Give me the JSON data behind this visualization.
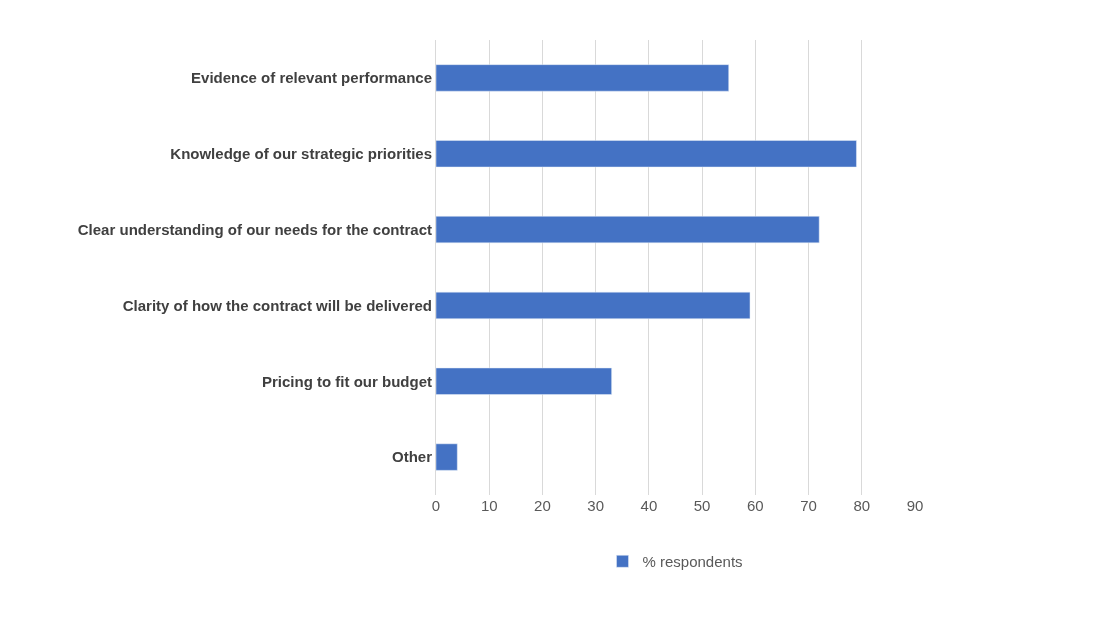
{
  "chart_data": {
    "type": "bar",
    "orientation": "horizontal",
    "categories": [
      "Evidence of relevant performance",
      "Knowledge of our strategic priorities",
      "Clear understanding of our needs for the contract",
      "Clarity of how the contract will be delivered",
      "Pricing to fit our budget",
      "Other"
    ],
    "series": [
      {
        "name": "% respondents",
        "color": "#4472c4",
        "values": [
          55,
          79,
          72,
          59,
          33,
          4
        ]
      }
    ],
    "xlim": [
      0,
      90
    ],
    "xticks": [
      0,
      10,
      20,
      30,
      40,
      50,
      60,
      70,
      80,
      90
    ],
    "grid": "x",
    "legend": "bottom"
  }
}
